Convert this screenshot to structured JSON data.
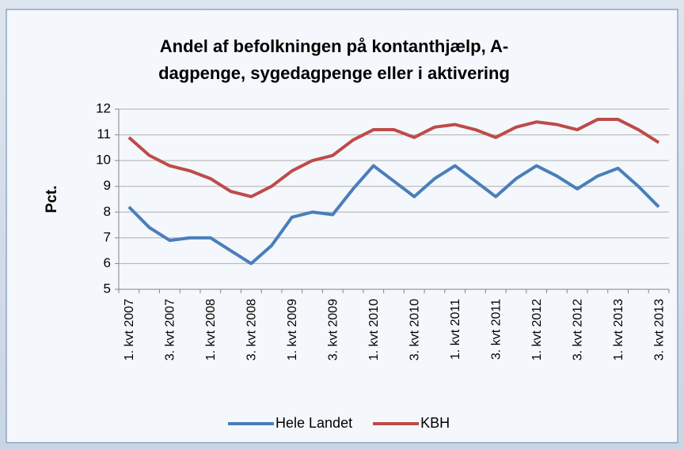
{
  "chart_data": {
    "type": "line",
    "title": "Andel af befolkningen på kontanthjælp, A-dagpenge, sygedagpenge eller i aktivering",
    "y_label": "Pct.",
    "categories": [
      "1. kvt 2007",
      null,
      "3. kvt 2007",
      null,
      "1. kvt 2008",
      null,
      "3. kvt 2008",
      null,
      "1. kvt 2009",
      null,
      "3. kvt 2009",
      null,
      "1. kvt 2010",
      null,
      "3. kvt 2010",
      null,
      "1. kvt 2011",
      null,
      "3. kvt 2011",
      null,
      "1. kvt 2012",
      null,
      "3. kvt 2012",
      null,
      "1. kvt 2013",
      null,
      "3. kvt 2013"
    ],
    "series": [
      {
        "name": "Hele Landet",
        "color": "#4a7ebb",
        "values": [
          8.2,
          7.4,
          6.9,
          7.0,
          7.0,
          6.5,
          6.0,
          6.7,
          7.8,
          8.0,
          7.9,
          8.9,
          9.8,
          9.2,
          8.6,
          9.3,
          9.8,
          9.2,
          8.6,
          9.3,
          9.8,
          9.4,
          8.9,
          9.4,
          9.7,
          9.0,
          8.2
        ]
      },
      {
        "name": "KBH",
        "color": "#be4b48",
        "values": [
          10.9,
          10.2,
          9.8,
          9.6,
          9.3,
          8.8,
          8.6,
          9.0,
          9.6,
          10.0,
          10.2,
          10.8,
          11.2,
          11.2,
          10.9,
          11.3,
          11.4,
          11.2,
          10.9,
          11.3,
          11.5,
          11.4,
          11.2,
          11.6,
          11.6,
          11.2,
          10.7
        ]
      }
    ],
    "ylim": [
      5,
      12
    ],
    "yticks": [
      5,
      6,
      7,
      8,
      9,
      10,
      11,
      12
    ],
    "grid": true,
    "legend": "bottom"
  }
}
